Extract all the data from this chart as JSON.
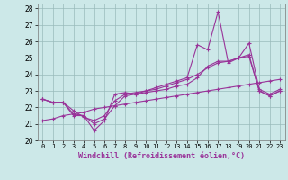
{
  "xlabel": "Windchill (Refroidissement éolien,°C)",
  "bg_color": "#cce8e8",
  "line_color": "#993399",
  "grid_color": "#99bbbb",
  "xlim": [
    -0.5,
    23.5
  ],
  "ylim": [
    20,
    28.3
  ],
  "yticks": [
    20,
    21,
    22,
    23,
    24,
    25,
    26,
    27,
    28
  ],
  "xticks": [
    0,
    1,
    2,
    3,
    4,
    5,
    6,
    7,
    8,
    9,
    10,
    11,
    12,
    13,
    14,
    15,
    16,
    17,
    18,
    19,
    20,
    21,
    22,
    23
  ],
  "series": [
    [
      22.5,
      22.3,
      22.3,
      21.5,
      21.5,
      20.6,
      21.2,
      22.8,
      22.9,
      22.8,
      23.0,
      23.2,
      23.4,
      23.6,
      23.8,
      25.8,
      25.5,
      27.8,
      24.7,
      25.0,
      25.9,
      23.1,
      22.8,
      23.1
    ],
    [
      22.5,
      22.3,
      22.3,
      21.8,
      21.4,
      21.2,
      21.5,
      22.4,
      22.8,
      22.9,
      23.0,
      23.1,
      23.3,
      23.5,
      23.7,
      24.0,
      24.4,
      24.7,
      24.8,
      25.0,
      25.1,
      23.0,
      22.7,
      23.0
    ],
    [
      22.5,
      22.3,
      22.3,
      21.6,
      21.5,
      21.0,
      21.3,
      22.1,
      22.7,
      22.8,
      22.9,
      23.0,
      23.1,
      23.3,
      23.4,
      23.8,
      24.5,
      24.8,
      24.8,
      25.0,
      25.2,
      23.0,
      22.7,
      23.0
    ],
    [
      21.2,
      21.3,
      21.5,
      21.6,
      21.7,
      21.9,
      22.0,
      22.1,
      22.2,
      22.3,
      22.4,
      22.5,
      22.6,
      22.7,
      22.8,
      22.9,
      23.0,
      23.1,
      23.2,
      23.3,
      23.4,
      23.5,
      23.6,
      23.7
    ]
  ]
}
